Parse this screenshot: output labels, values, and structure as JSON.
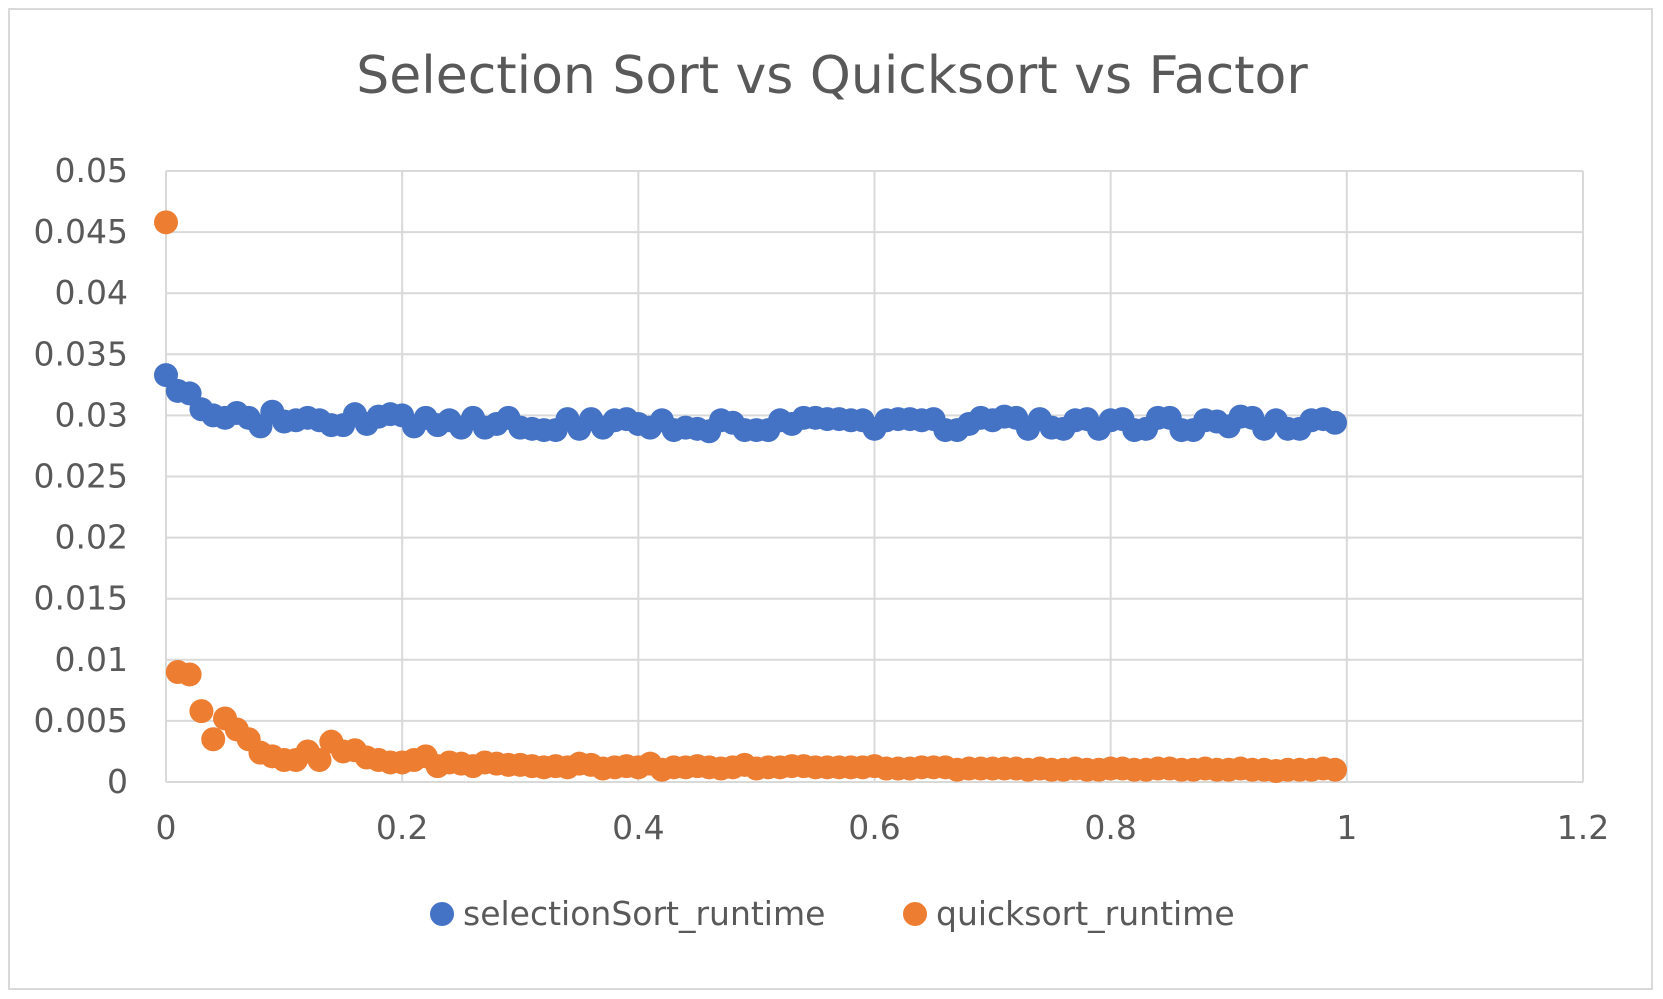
{
  "chart_data": {
    "type": "scatter",
    "title": "Selection Sort vs Quicksort vs Factor",
    "xlabel": "",
    "ylabel": "",
    "xlim": [
      0,
      1.2
    ],
    "ylim": [
      0,
      0.05
    ],
    "x_ticks": [
      "0",
      "0.2",
      "0.4",
      "0.6",
      "0.8",
      "1",
      "1.2"
    ],
    "y_ticks": [
      "0",
      "0.005",
      "0.01",
      "0.015",
      "0.02",
      "0.025",
      "0.03",
      "0.035",
      "0.04",
      "0.045",
      "0.05"
    ],
    "grid": true,
    "legend_position": "bottom",
    "series": [
      {
        "name": "selectionSort_runtime",
        "color": "#4472c4",
        "x": [
          0.0,
          0.01,
          0.02,
          0.03,
          0.04,
          0.05,
          0.06,
          0.07,
          0.08,
          0.09,
          0.1,
          0.11,
          0.12,
          0.13,
          0.14,
          0.15,
          0.16,
          0.17,
          0.18,
          0.19,
          0.2,
          0.21,
          0.22,
          0.23,
          0.24,
          0.25,
          0.26,
          0.27,
          0.28,
          0.29,
          0.3,
          0.31,
          0.32,
          0.33,
          0.34,
          0.35,
          0.36,
          0.37,
          0.38,
          0.39,
          0.4,
          0.41,
          0.42,
          0.43,
          0.44,
          0.45,
          0.46,
          0.47,
          0.48,
          0.49,
          0.5,
          0.51,
          0.52,
          0.53,
          0.54,
          0.55,
          0.56,
          0.57,
          0.58,
          0.59,
          0.6,
          0.61,
          0.62,
          0.63,
          0.64,
          0.65,
          0.66,
          0.67,
          0.68,
          0.69,
          0.7,
          0.71,
          0.72,
          0.73,
          0.74,
          0.75,
          0.76,
          0.77,
          0.78,
          0.79,
          0.8,
          0.81,
          0.82,
          0.83,
          0.84,
          0.85,
          0.86,
          0.87,
          0.88,
          0.89,
          0.9,
          0.91,
          0.92,
          0.93,
          0.94,
          0.95,
          0.96,
          0.97,
          0.98,
          0.99
        ],
        "y": [
          0.0333,
          0.032,
          0.0318,
          0.0305,
          0.03,
          0.0298,
          0.0302,
          0.0298,
          0.0291,
          0.0303,
          0.0295,
          0.0296,
          0.0298,
          0.0296,
          0.0292,
          0.0292,
          0.0301,
          0.0293,
          0.0299,
          0.0301,
          0.03,
          0.0291,
          0.0298,
          0.0292,
          0.0296,
          0.029,
          0.0298,
          0.029,
          0.0293,
          0.0298,
          0.029,
          0.0289,
          0.0288,
          0.0288,
          0.0297,
          0.0289,
          0.0297,
          0.029,
          0.0296,
          0.0297,
          0.0293,
          0.029,
          0.0296,
          0.0288,
          0.029,
          0.0289,
          0.0287,
          0.0296,
          0.0294,
          0.0288,
          0.0288,
          0.0288,
          0.0296,
          0.0293,
          0.0298,
          0.0298,
          0.0297,
          0.0297,
          0.0296,
          0.0296,
          0.0289,
          0.0296,
          0.0297,
          0.0297,
          0.0296,
          0.0297,
          0.0288,
          0.0288,
          0.0293,
          0.0298,
          0.0296,
          0.0299,
          0.0298,
          0.0289,
          0.0297,
          0.029,
          0.0289,
          0.0296,
          0.0297,
          0.0289,
          0.0296,
          0.0297,
          0.0288,
          0.0289,
          0.0298,
          0.0298,
          0.0288,
          0.0288,
          0.0296,
          0.0295,
          0.0291,
          0.0299,
          0.0298,
          0.0289,
          0.0296,
          0.0289,
          0.0289,
          0.0296,
          0.0297,
          0.0294
        ]
      },
      {
        "name": "quicksort_runtime",
        "color": "#ed7d31",
        "x": [
          0.0,
          0.01,
          0.02,
          0.03,
          0.04,
          0.05,
          0.06,
          0.07,
          0.08,
          0.09,
          0.1,
          0.11,
          0.12,
          0.13,
          0.14,
          0.15,
          0.16,
          0.17,
          0.18,
          0.19,
          0.2,
          0.21,
          0.22,
          0.23,
          0.24,
          0.25,
          0.26,
          0.27,
          0.28,
          0.29,
          0.3,
          0.31,
          0.32,
          0.33,
          0.34,
          0.35,
          0.36,
          0.37,
          0.38,
          0.39,
          0.4,
          0.41,
          0.42,
          0.43,
          0.44,
          0.45,
          0.46,
          0.47,
          0.48,
          0.49,
          0.5,
          0.51,
          0.52,
          0.53,
          0.54,
          0.55,
          0.56,
          0.57,
          0.58,
          0.59,
          0.6,
          0.61,
          0.62,
          0.63,
          0.64,
          0.65,
          0.66,
          0.67,
          0.68,
          0.69,
          0.7,
          0.71,
          0.72,
          0.73,
          0.74,
          0.75,
          0.76,
          0.77,
          0.78,
          0.79,
          0.8,
          0.81,
          0.82,
          0.83,
          0.84,
          0.85,
          0.86,
          0.87,
          0.88,
          0.89,
          0.9,
          0.91,
          0.92,
          0.93,
          0.94,
          0.95,
          0.96,
          0.97,
          0.98,
          0.99
        ],
        "y": [
          0.0458,
          0.009,
          0.0088,
          0.0058,
          0.0035,
          0.0052,
          0.0043,
          0.0035,
          0.0024,
          0.0021,
          0.0018,
          0.0018,
          0.0025,
          0.0018,
          0.0033,
          0.0025,
          0.0026,
          0.002,
          0.0018,
          0.0016,
          0.0016,
          0.0018,
          0.0021,
          0.0013,
          0.0016,
          0.0015,
          0.0013,
          0.0016,
          0.0015,
          0.0014,
          0.0014,
          0.0013,
          0.0012,
          0.0013,
          0.0012,
          0.0015,
          0.0014,
          0.0011,
          0.0012,
          0.0013,
          0.0012,
          0.0015,
          0.001,
          0.0012,
          0.0012,
          0.0013,
          0.0012,
          0.0011,
          0.0012,
          0.0014,
          0.0011,
          0.0012,
          0.0012,
          0.0013,
          0.0013,
          0.0012,
          0.0012,
          0.0012,
          0.0012,
          0.0012,
          0.0013,
          0.0011,
          0.0011,
          0.0011,
          0.0012,
          0.0012,
          0.0012,
          0.001,
          0.0011,
          0.0011,
          0.0011,
          0.0011,
          0.0011,
          0.001,
          0.0011,
          0.001,
          0.001,
          0.0011,
          0.001,
          0.001,
          0.0011,
          0.0011,
          0.001,
          0.001,
          0.0011,
          0.0011,
          0.001,
          0.001,
          0.0011,
          0.001,
          0.001,
          0.0011,
          0.001,
          0.001,
          0.0009,
          0.001,
          0.001,
          0.001,
          0.0011,
          0.001
        ]
      }
    ]
  }
}
